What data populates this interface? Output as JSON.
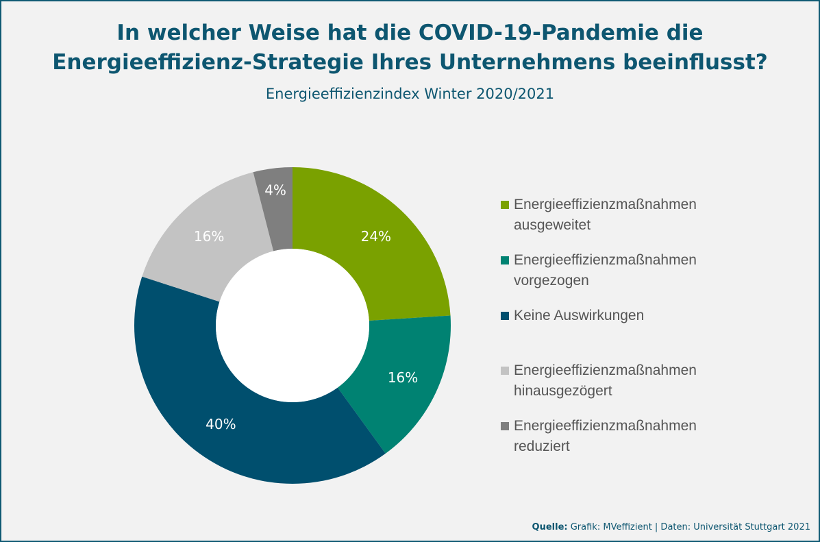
{
  "chart_data": {
    "type": "pie",
    "title_line1": "In welcher Weise hat die COVID-19-Pandemie die",
    "title_line2": "Energieeffizienz-Strategie Ihres Unternehmens beeinflusst?",
    "subtitle": "Energieeffizienzindex Winter 2020/2021",
    "slices": [
      {
        "label": "Energieeffizienzmaßnahmen ausgeweitet",
        "line1": "Energieeffizienzmaßnahmen",
        "line2": "ausgeweitet",
        "value": 24,
        "display": "24%",
        "color": "#7aa100"
      },
      {
        "label": "Energieeffizienzmaßnahmen vorgezogen",
        "line1": "Energieeffizienzmaßnahmen",
        "line2": "vorgezogen",
        "value": 16,
        "display": "16%",
        "color": "#008272"
      },
      {
        "label": "Keine Auswirkungen",
        "line1": "Keine Auswirkungen",
        "line2": "",
        "value": 40,
        "display": "40%",
        "color": "#004f6e"
      },
      {
        "label": "Energieeffizienzmaßnahmen hinausgezögert",
        "line1": "Energieeffizienzmaßnahmen",
        "line2": "hinausgezögert",
        "value": 16,
        "display": "16%",
        "color": "#c3c3c3"
      },
      {
        "label": "Energieeffizienzmaßnahmen reduziert",
        "line1": "Energieeffizienzmaßnahmen",
        "line2": "reduziert",
        "value": 4,
        "display": "4%",
        "color": "#7f7f7f"
      }
    ],
    "legend_position": "right",
    "start_angle": "12 o'clock",
    "direction": "clockwise",
    "hole": "white"
  },
  "source": {
    "label": "Quelle:",
    "text": "Grafik: MVeffizient | Daten: Universität Stuttgart 2021"
  }
}
